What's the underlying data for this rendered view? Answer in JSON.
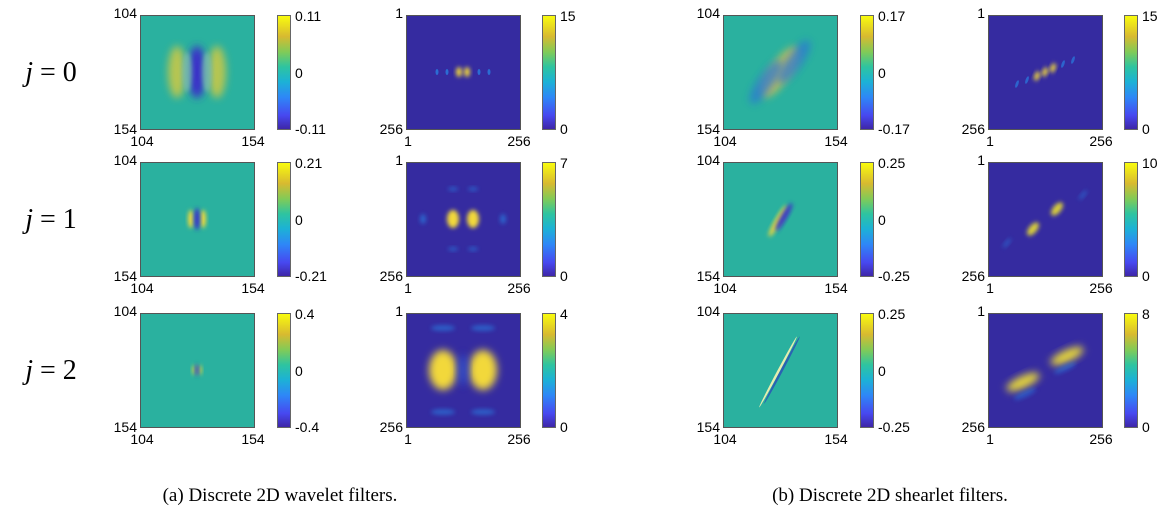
{
  "rows": [
    {
      "label_var": "j",
      "label_rest": " = 0"
    },
    {
      "label_var": "j",
      "label_rest": " = 1"
    },
    {
      "label_var": "j",
      "label_rest": " = 2"
    }
  ],
  "spatial_ticks": {
    "top": "104",
    "bottom": "154",
    "left": "104",
    "right": "154"
  },
  "freq_ticks": {
    "top": "1",
    "bottom": "256",
    "left": "1",
    "right": "256"
  },
  "wavelet": {
    "spatial_cbar": [
      {
        "max": "0.11",
        "mid": "0",
        "min": "-0.11"
      },
      {
        "max": "0.21",
        "mid": "0",
        "min": "-0.21"
      },
      {
        "max": "0.4",
        "mid": "0",
        "min": "-0.4"
      }
    ],
    "freq_cbar": [
      {
        "max": "15",
        "min": "0"
      },
      {
        "max": "7",
        "min": "0"
      },
      {
        "max": "4",
        "min": "0"
      }
    ]
  },
  "shearlet": {
    "spatial_cbar": [
      {
        "max": "0.17",
        "mid": "0",
        "min": "-0.17"
      },
      {
        "max": "0.25",
        "mid": "0",
        "min": "-0.25"
      },
      {
        "max": "0.25",
        "mid": "0",
        "min": "-0.25"
      }
    ],
    "freq_cbar": [
      {
        "max": "15",
        "min": "0"
      },
      {
        "max": "10",
        "min": "0"
      },
      {
        "max": "8",
        "min": "0"
      }
    ]
  },
  "captions": {
    "a": "(a) Discrete 2D wavelet filters.",
    "b": "(b) Discrete 2D shearlet filters."
  },
  "colors": {
    "field_zero": "#2ab19f",
    "field_low": "#352ba0",
    "high": "#f9fb0e",
    "neg": "#3e26a8"
  }
}
